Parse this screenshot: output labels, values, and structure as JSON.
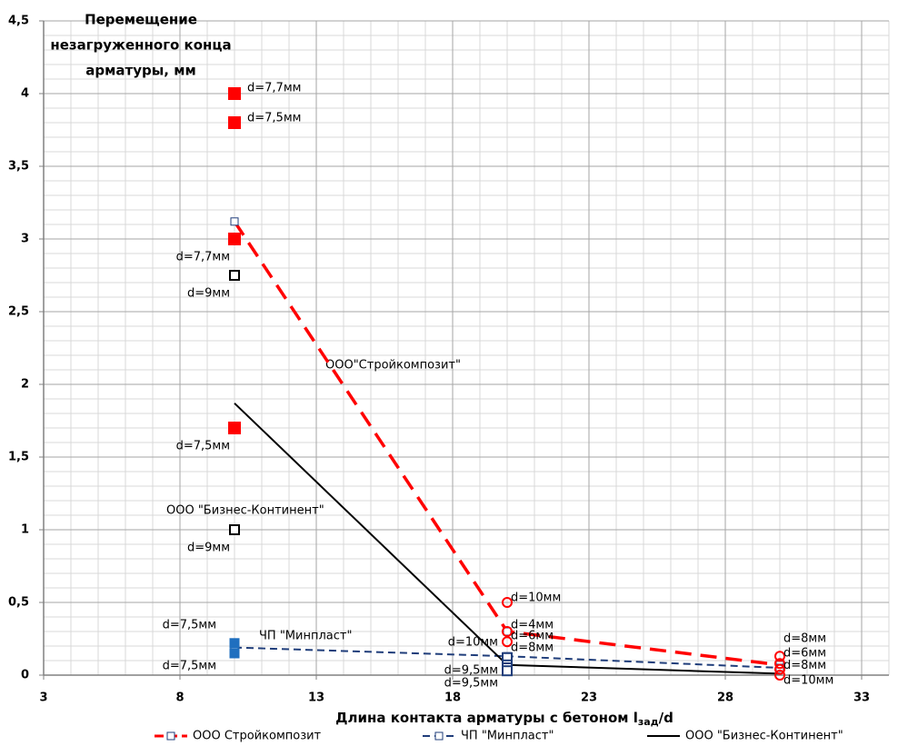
{
  "chart_data": {
    "type": "line",
    "ylabel": [
      "Перемещение",
      "незагруженного конца",
      "арматуры, мм"
    ],
    "xlabel": [
      "Длина контакта арматуры с бетоном l",
      "зад",
      "/d"
    ],
    "xlim": [
      3,
      34
    ],
    "ylim": [
      0,
      4.5
    ],
    "xticks": [
      3,
      8,
      13,
      18,
      23,
      28,
      33
    ],
    "yticks": [
      0,
      {
        "value": 0.5,
        "label": "0,5"
      },
      1,
      {
        "value": 1.5,
        "label": "1,5"
      },
      2,
      {
        "value": 2.5,
        "label": "2,5"
      },
      3,
      {
        "value": 3.5,
        "label": "3,5"
      },
      4,
      {
        "value": 4.5,
        "label": "4,5"
      }
    ],
    "grid": true,
    "minor_grid": true,
    "legend": "bottom",
    "series": [
      {
        "name": "ООО Стройкомпозит",
        "color": "#ff0000",
        "dash": "18 10",
        "marker": "square",
        "x": [
          10,
          20,
          30
        ],
        "values": [
          3.12,
          0.3,
          0.07
        ]
      },
      {
        "name": "ЧП \"Минпласт\"",
        "color": "#1f3d7a",
        "dash": "8 5",
        "marker": "square",
        "x": [
          10,
          20,
          30
        ],
        "values": [
          0.19,
          0.13,
          0.05
        ]
      },
      {
        "name": "ООО \"Бизнес-Континент\"",
        "color": "#000000",
        "dash": "none",
        "marker": "none",
        "x": [
          10,
          20,
          30
        ],
        "values": [
          1.87,
          0.07,
          0.01
        ]
      }
    ],
    "point_groups": [
      {
        "color": "#ff0000",
        "marker": "filled-square",
        "x": [
          10,
          10,
          10,
          10
        ],
        "values": [
          4.0,
          3.8,
          3.0,
          1.7
        ],
        "labels": [
          "d=7,7мм",
          "d=7,5мм",
          "d=7,7мм",
          "d=7,5мм"
        ]
      },
      {
        "color": "#000000",
        "marker": "hollow-square",
        "x": [
          10,
          10
        ],
        "values": [
          2.75,
          1.0
        ],
        "labels": [
          "d=9мм",
          "d=9мм"
        ]
      },
      {
        "color": "#1f6fbf",
        "marker": "filled-square",
        "x": [
          10,
          10
        ],
        "values": [
          0.22,
          0.15
        ],
        "labels": [
          "d=7,5мм",
          "d=7,5мм"
        ]
      },
      {
        "color": "#ff0000",
        "marker": "hollow-circle",
        "x": [
          20,
          20,
          20,
          30,
          30,
          30,
          30
        ],
        "values": [
          0.5,
          0.3,
          0.23,
          0.13,
          0.08,
          0.04,
          0.0
        ],
        "labels": [
          "d=10мм",
          "d=4мм",
          "d=6мм",
          "d=8мм",
          "d=6мм",
          "d=8мм",
          "d=10мм"
        ]
      },
      {
        "color": "#1f3d7a",
        "marker": "hollow-square",
        "x": [
          20,
          20,
          20,
          20
        ],
        "values": [
          0.12,
          0.07,
          0.05,
          0.03
        ],
        "labels": [
          "d=8мм",
          "d=10мм",
          "d=9,5мм",
          "d=9,5мм"
        ]
      }
    ],
    "annotations": [
      "ООО\"Стройкомпозит\"",
      "ООО \"Бизнес-Континент\"",
      "ЧП \"Минпласт\""
    ]
  }
}
